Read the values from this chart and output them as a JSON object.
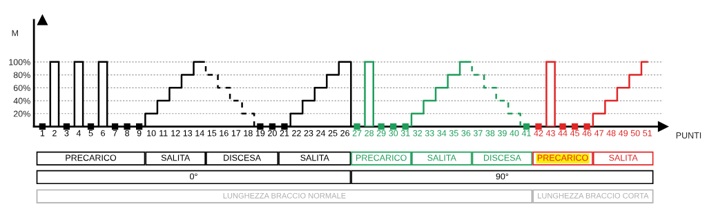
{
  "chart_data": {
    "type": "bar",
    "xlabel": "PUNTI",
    "ylabel": "M",
    "categories": [
      "1",
      "2",
      "3",
      "4",
      "5",
      "6",
      "7",
      "8",
      "9",
      "10",
      "11",
      "12",
      "13",
      "14",
      "15",
      "16",
      "17",
      "18",
      "19",
      "20",
      "21",
      "22",
      "23",
      "24",
      "25",
      "26",
      "27",
      "28",
      "29",
      "30",
      "31",
      "32",
      "33",
      "34",
      "35",
      "36",
      "37",
      "38",
      "39",
      "40",
      "41",
      "42",
      "43",
      "44",
      "45",
      "46",
      "47",
      "48",
      "49",
      "50",
      "51"
    ],
    "series": [
      {
        "type": "bar",
        "x": [
          "2",
          "4",
          "6",
          "28",
          "43"
        ],
        "values": [
          100,
          100,
          100,
          100,
          100
        ],
        "colors": [
          "#000000",
          "#000000",
          "#000000",
          "#1e9e5a",
          "#e02626"
        ]
      },
      {
        "type": "scatter",
        "marker": "square",
        "x": [
          "1",
          "3",
          "5",
          "7",
          "8",
          "9",
          "19",
          "20",
          "21",
          "27",
          "29",
          "30",
          "31",
          "41",
          "42",
          "44",
          "45",
          "46"
        ],
        "values": [
          0,
          0,
          0,
          0,
          0,
          0,
          0,
          0,
          0,
          0,
          0,
          0,
          0,
          0,
          0,
          0,
          0,
          0
        ],
        "colors": [
          "#000000",
          "#000000",
          "#000000",
          "#000000",
          "#000000",
          "#000000",
          "#000000",
          "#000000",
          "#000000",
          "#1e9e5a",
          "#1e9e5a",
          "#1e9e5a",
          "#1e9e5a",
          "#1e9e5a",
          "#e02626",
          "#e02626",
          "#e02626",
          "#e02626"
        ]
      },
      {
        "type": "step",
        "line_style": "solid",
        "color": "#000000",
        "x": [
          "9",
          "10",
          "11",
          "12",
          "13",
          "14"
        ],
        "values": [
          0,
          20,
          40,
          60,
          80,
          100
        ]
      },
      {
        "type": "step",
        "line_style": "dashed",
        "color": "#000000",
        "x": [
          "14",
          "15",
          "16",
          "17",
          "18",
          "19"
        ],
        "values": [
          100,
          80,
          60,
          40,
          20,
          0
        ]
      },
      {
        "type": "step",
        "line_style": "solid",
        "color": "#000000",
        "x": [
          "21",
          "22",
          "23",
          "24",
          "25",
          "26",
          "27"
        ],
        "values": [
          0,
          20,
          40,
          60,
          80,
          100,
          0
        ]
      },
      {
        "type": "step",
        "line_style": "solid",
        "color": "#1e9e5a",
        "x": [
          "31",
          "32",
          "33",
          "34",
          "35",
          "36"
        ],
        "values": [
          0,
          20,
          40,
          60,
          80,
          100
        ]
      },
      {
        "type": "step",
        "line_style": "dashed",
        "color": "#1e9e5a",
        "x": [
          "36",
          "37",
          "38",
          "39",
          "40",
          "41"
        ],
        "values": [
          100,
          80,
          60,
          40,
          20,
          0
        ]
      },
      {
        "type": "step",
        "line_style": "solid",
        "color": "#e02626",
        "x": [
          "46",
          "47",
          "48",
          "49",
          "50",
          "51"
        ],
        "values": [
          0,
          20,
          40,
          60,
          80,
          100
        ]
      }
    ],
    "ylim": [
      0,
      165
    ],
    "yticks": [
      {
        "value": 20,
        "label": "20%"
      },
      {
        "value": 40,
        "label": "40%"
      },
      {
        "value": 60,
        "label": "60%"
      },
      {
        "value": 80,
        "label": "80%"
      },
      {
        "value": 100,
        "label": "100%"
      }
    ],
    "grid": "y",
    "annotations": [
      "PRECARICO",
      "SALITA",
      "DISCESA",
      "SALITA",
      "PRECARICO",
      "SALITA",
      "DISCESA",
      "PRECARICO",
      "SALITA",
      "0°",
      "90°",
      "LUNGHEZZA BRACCIO NORMALE",
      "LUNGHEZZA BRACCIO CORTA"
    ]
  }
}
